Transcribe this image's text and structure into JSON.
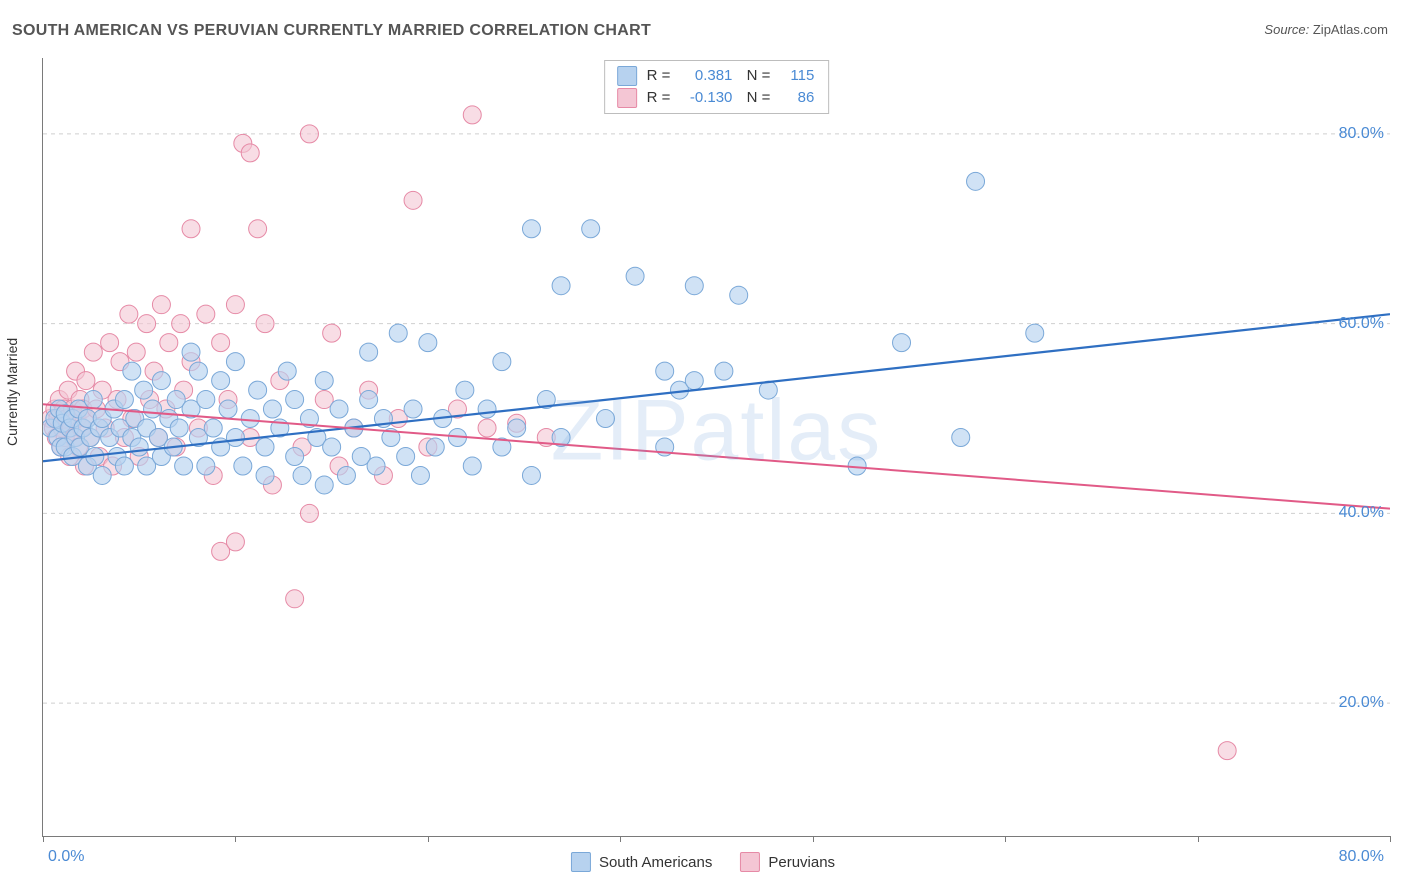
{
  "title": "SOUTH AMERICAN VS PERUVIAN CURRENTLY MARRIED CORRELATION CHART",
  "source_label": "Source:",
  "source_value": "ZipAtlas.com",
  "watermark": "ZIPatlas",
  "y_axis_title": "Currently Married",
  "chart": {
    "type": "scatter",
    "xlim": [
      0,
      91
    ],
    "ylim": [
      6,
      88
    ],
    "x_ticks": [
      0,
      13,
      26,
      39,
      52,
      65,
      78,
      91
    ],
    "x_tick_label_first": "0.0%",
    "x_tick_label_last": "80.0%",
    "y_gridlines": [
      20,
      40,
      60,
      80
    ],
    "y_labels": [
      "20.0%",
      "40.0%",
      "60.0%",
      "80.0%"
    ],
    "grid_color": "#cfcfcf",
    "axis_color": "#7a7a7a",
    "background_color": "#ffffff",
    "series": [
      {
        "name": "South Americans",
        "color_fill": "#b7d2ef",
        "color_stroke": "#7aa8d8",
        "fill_opacity": 0.65,
        "marker_radius": 9,
        "R": "0.381",
        "N": "115",
        "trend": {
          "color": "#2f6fc2",
          "width": 2.2,
          "y_at_xmin": 45.5,
          "y_at_xmax": 61.0
        },
        "points": [
          [
            0.5,
            49
          ],
          [
            0.8,
            50
          ],
          [
            1,
            48
          ],
          [
            1.1,
            51
          ],
          [
            1.2,
            47
          ],
          [
            1.3,
            49.5
          ],
          [
            1.5,
            50.5
          ],
          [
            1.5,
            47
          ],
          [
            1.8,
            49
          ],
          [
            2,
            50
          ],
          [
            2,
            46
          ],
          [
            2.2,
            48
          ],
          [
            2.4,
            51
          ],
          [
            2.5,
            47
          ],
          [
            2.7,
            49
          ],
          [
            3,
            50
          ],
          [
            3,
            45
          ],
          [
            3.2,
            48
          ],
          [
            3.4,
            52
          ],
          [
            3.5,
            46
          ],
          [
            3.8,
            49
          ],
          [
            4,
            50
          ],
          [
            4,
            44
          ],
          [
            4.5,
            48
          ],
          [
            4.8,
            51
          ],
          [
            5,
            46
          ],
          [
            5.2,
            49
          ],
          [
            5.5,
            52
          ],
          [
            5.5,
            45
          ],
          [
            6,
            48
          ],
          [
            6,
            55
          ],
          [
            6.2,
            50
          ],
          [
            6.5,
            47
          ],
          [
            6.8,
            53
          ],
          [
            7,
            49
          ],
          [
            7,
            45
          ],
          [
            7.4,
            51
          ],
          [
            7.8,
            48
          ],
          [
            8,
            54
          ],
          [
            8,
            46
          ],
          [
            8.5,
            50
          ],
          [
            8.8,
            47
          ],
          [
            9,
            52
          ],
          [
            9.2,
            49
          ],
          [
            9.5,
            45
          ],
          [
            10,
            51
          ],
          [
            10,
            57
          ],
          [
            10.5,
            55
          ],
          [
            10.5,
            48
          ],
          [
            11,
            45
          ],
          [
            11,
            52
          ],
          [
            11.5,
            49
          ],
          [
            12,
            54
          ],
          [
            12,
            47
          ],
          [
            12.5,
            51
          ],
          [
            13,
            48
          ],
          [
            13,
            56
          ],
          [
            13.5,
            45
          ],
          [
            14,
            50
          ],
          [
            14.5,
            53
          ],
          [
            15,
            47
          ],
          [
            15,
            44
          ],
          [
            15.5,
            51
          ],
          [
            16,
            49
          ],
          [
            16.5,
            55
          ],
          [
            17,
            46
          ],
          [
            17,
            52
          ],
          [
            17.5,
            44
          ],
          [
            18,
            50
          ],
          [
            18.5,
            48
          ],
          [
            19,
            54
          ],
          [
            19,
            43
          ],
          [
            19.5,
            47
          ],
          [
            20,
            51
          ],
          [
            20.5,
            44
          ],
          [
            21,
            49
          ],
          [
            21.5,
            46
          ],
          [
            22,
            52
          ],
          [
            22,
            57
          ],
          [
            22.5,
            45
          ],
          [
            23,
            50
          ],
          [
            23.5,
            48
          ],
          [
            24,
            59
          ],
          [
            24.5,
            46
          ],
          [
            25,
            51
          ],
          [
            25.5,
            44
          ],
          [
            26,
            58
          ],
          [
            26.5,
            47
          ],
          [
            27,
            50
          ],
          [
            28,
            48
          ],
          [
            28.5,
            53
          ],
          [
            29,
            45
          ],
          [
            30,
            51
          ],
          [
            31,
            56
          ],
          [
            31,
            47
          ],
          [
            32,
            49
          ],
          [
            33,
            44
          ],
          [
            33,
            70
          ],
          [
            34,
            52
          ],
          [
            35,
            48
          ],
          [
            35,
            64
          ],
          [
            37,
            70
          ],
          [
            38,
            50
          ],
          [
            40,
            65
          ],
          [
            42,
            55
          ],
          [
            42,
            47
          ],
          [
            43,
            53
          ],
          [
            44,
            64
          ],
          [
            44,
            54
          ],
          [
            46,
            55
          ],
          [
            47,
            63
          ],
          [
            49,
            53
          ],
          [
            55,
            45
          ],
          [
            58,
            58
          ],
          [
            63,
            75
          ],
          [
            67,
            59
          ],
          [
            62,
            48
          ]
        ]
      },
      {
        "name": "Peruvians",
        "color_fill": "#f4c6d4",
        "color_stroke": "#e68aa6",
        "fill_opacity": 0.6,
        "marker_radius": 9,
        "R": "-0.130",
        "N": "86",
        "trend": {
          "color": "#e15a87",
          "width": 2.0,
          "y_at_xmin": 51.5,
          "y_at_xmax": 40.5
        },
        "points": [
          [
            0.5,
            50
          ],
          [
            0.7,
            49
          ],
          [
            0.8,
            51
          ],
          [
            0.9,
            48
          ],
          [
            1,
            50
          ],
          [
            1.1,
            52
          ],
          [
            1.2,
            47
          ],
          [
            1.3,
            49
          ],
          [
            1.4,
            51
          ],
          [
            1.5,
            48
          ],
          [
            1.6,
            50
          ],
          [
            1.7,
            53
          ],
          [
            1.8,
            46
          ],
          [
            1.9,
            49
          ],
          [
            2,
            51
          ],
          [
            2.1,
            48
          ],
          [
            2.2,
            55
          ],
          [
            2.3,
            50
          ],
          [
            2.4,
            47
          ],
          [
            2.5,
            52
          ],
          [
            2.6,
            49
          ],
          [
            2.7,
            51
          ],
          [
            2.8,
            45
          ],
          [
            2.9,
            54
          ],
          [
            3,
            50
          ],
          [
            3.2,
            48
          ],
          [
            3.4,
            57
          ],
          [
            3.6,
            51
          ],
          [
            3.8,
            46
          ],
          [
            4,
            53
          ],
          [
            4.2,
            49
          ],
          [
            4.5,
            58
          ],
          [
            4.7,
            45
          ],
          [
            5,
            52
          ],
          [
            5.2,
            56
          ],
          [
            5.5,
            48
          ],
          [
            5.8,
            61
          ],
          [
            6,
            50
          ],
          [
            6.3,
            57
          ],
          [
            6.5,
            46
          ],
          [
            7,
            60
          ],
          [
            7.2,
            52
          ],
          [
            7.5,
            55
          ],
          [
            7.8,
            48
          ],
          [
            8,
            62
          ],
          [
            8.3,
            51
          ],
          [
            8.5,
            58
          ],
          [
            9,
            47
          ],
          [
            9.3,
            60
          ],
          [
            9.5,
            53
          ],
          [
            10,
            56
          ],
          [
            10.5,
            49
          ],
          [
            10,
            70
          ],
          [
            11,
            61
          ],
          [
            11.5,
            44
          ],
          [
            12,
            58
          ],
          [
            12,
            36
          ],
          [
            12.5,
            52
          ],
          [
            13,
            37
          ],
          [
            13,
            62
          ],
          [
            13.5,
            79
          ],
          [
            14,
            48
          ],
          [
            14,
            78
          ],
          [
            15,
            60
          ],
          [
            15.5,
            43
          ],
          [
            16,
            54
          ],
          [
            17,
            31
          ],
          [
            17.5,
            47
          ],
          [
            18,
            80
          ],
          [
            18,
            40
          ],
          [
            19,
            52
          ],
          [
            19.5,
            59
          ],
          [
            20,
            45
          ],
          [
            21,
            49
          ],
          [
            22,
            53
          ],
          [
            23,
            44
          ],
          [
            24,
            50
          ],
          [
            25,
            73
          ],
          [
            26,
            47
          ],
          [
            28,
            51
          ],
          [
            29,
            82
          ],
          [
            30,
            49
          ],
          [
            32,
            49.5
          ],
          [
            34,
            48
          ],
          [
            80,
            15
          ],
          [
            14.5,
            70
          ]
        ]
      }
    ]
  },
  "legend_bottom": [
    {
      "label": "South Americans",
      "fill": "#b7d2ef",
      "stroke": "#7aa8d8"
    },
    {
      "label": "Peruvians",
      "fill": "#f4c6d4",
      "stroke": "#e68aa6"
    }
  ]
}
